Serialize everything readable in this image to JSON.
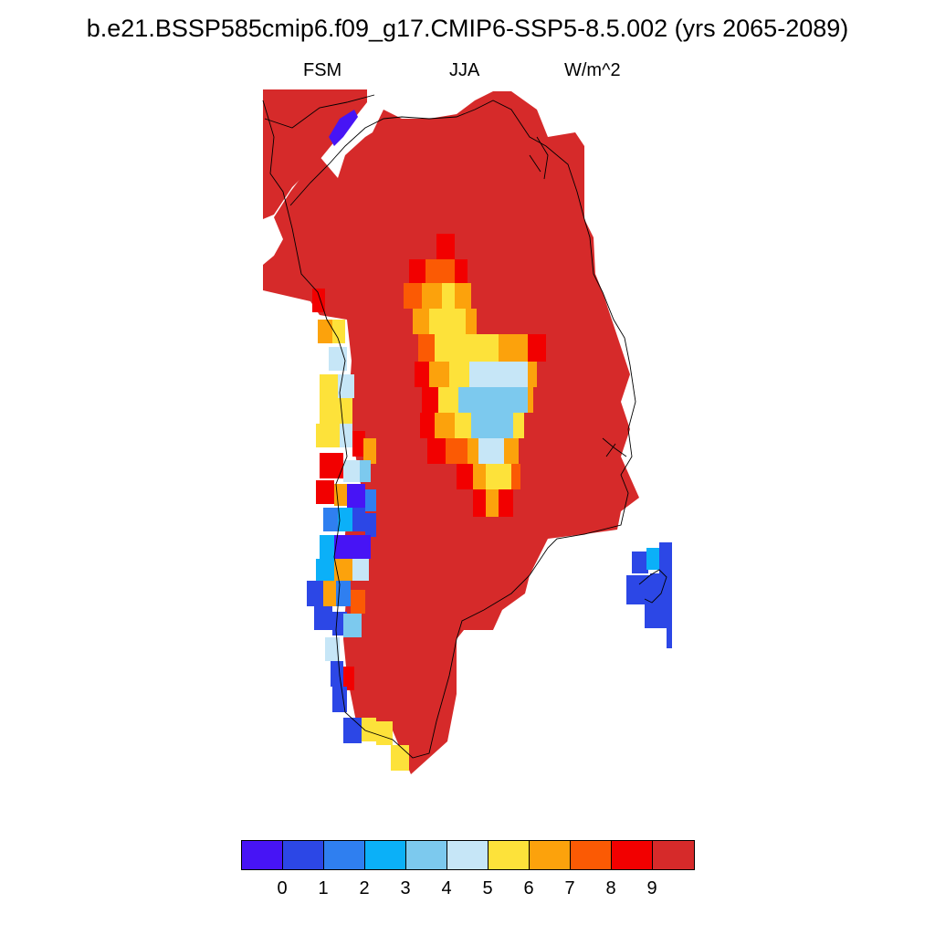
{
  "title": "b.e21.BSSP585cmip6.f09_g17.CMIP6-SSP5-8.5.002 (yrs 2065-2089)",
  "left_label": "FSM",
  "center_label": "JJA",
  "right_label": "W/m^2",
  "colors": {
    "background": "#ffffff",
    "coastline": "#000000",
    "levels": [
      "#4714f5",
      "#2c47e6",
      "#2f7ff0",
      "#0bb0f8",
      "#7cc9ee",
      "#c6e6f7",
      "#fde23a",
      "#fca20c",
      "#fb5a04",
      "#f20000",
      "#d62a2a"
    ]
  },
  "colorbar": {
    "labels": [
      "0",
      "1",
      "2",
      "3",
      "4",
      "5",
      "6",
      "7",
      "8",
      "9"
    ]
  },
  "regions": [
    {
      "name": "greenland-ice-sheet",
      "level": 10
    },
    {
      "name": "interior-melt-zone-low",
      "level": 5
    },
    {
      "name": "southwest-coast-margin",
      "level": 1
    },
    {
      "name": "svalbard-cells",
      "level": 1
    }
  ]
}
